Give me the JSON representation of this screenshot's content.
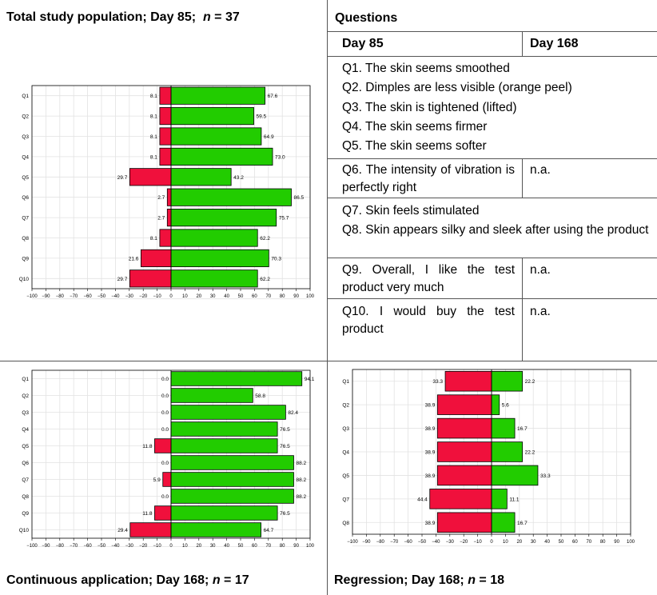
{
  "panels": {
    "top_left_title": "Total study population; Day 85;",
    "top_left_n": "37",
    "bottom_left_title": "Continuous application; Day 168;",
    "bottom_left_n": "17",
    "bottom_right_title": "Regression; Day 168;",
    "bottom_right_n": "18",
    "n_label": "n",
    "equals": "="
  },
  "questions_table": {
    "title": "Questions",
    "col_day85": "Day 85",
    "col_day168": "Day 168",
    "q1": "Q1. The skin seems smoothed",
    "q2": "Q2. Dimples are less visible (orange peel)",
    "q3": "Q3. The skin is tightened (lifted)",
    "q4": "Q4. The skin seems firmer",
    "q5": "Q5. The skin seems softer",
    "q6": "Q6. The intensity of vibration is perfectly right",
    "q6_168": "n.a.",
    "q7": "Q7. Skin feels stimulated",
    "q8": "Q8. Skin appears silky and sleek after using the product",
    "q9": "Q9. Overall, I like the test product very much",
    "q9_168": "n.a.",
    "q10": "Q10. I would buy the test product",
    "q10_168": "n.a."
  },
  "colors": {
    "negative": "#f0103c",
    "positive": "#22cc00",
    "grid": "#e2e2e2"
  },
  "chart_data": [
    {
      "type": "bar",
      "orientation": "horizontal-diverging",
      "title": "Total study population; Day 85; n = 37",
      "categories": [
        "Q1",
        "Q2",
        "Q3",
        "Q4",
        "Q5",
        "Q6",
        "Q7",
        "Q8",
        "Q9",
        "Q10"
      ],
      "negative": [
        8.1,
        8.1,
        8.1,
        8.1,
        29.7,
        2.7,
        2.7,
        8.1,
        21.6,
        29.7
      ],
      "positive": [
        67.6,
        59.5,
        64.9,
        73.0,
        43.2,
        86.5,
        75.7,
        62.2,
        70.3,
        62.2
      ],
      "xlim": [
        -100,
        100
      ],
      "xticks": [
        -100,
        -90,
        -80,
        -70,
        -60,
        -50,
        -40,
        -30,
        -20,
        -10,
        0,
        10,
        20,
        30,
        40,
        50,
        60,
        70,
        80,
        90,
        100
      ],
      "grid": true
    },
    {
      "type": "bar",
      "orientation": "horizontal-diverging",
      "title": "Continuous application; Day 168; n = 17",
      "categories": [
        "Q1",
        "Q2",
        "Q3",
        "Q4",
        "Q5",
        "Q6",
        "Q7",
        "Q8",
        "Q9",
        "Q10"
      ],
      "negative": [
        0.0,
        0.0,
        0.0,
        0.0,
        11.8,
        0.0,
        5.9,
        0.0,
        11.8,
        29.4
      ],
      "positive": [
        94.1,
        58.8,
        82.4,
        76.5,
        76.5,
        88.2,
        88.2,
        88.2,
        76.5,
        64.7
      ],
      "xlim": [
        -100,
        100
      ],
      "xticks": [
        -100,
        -90,
        -80,
        -70,
        -60,
        -50,
        -40,
        -30,
        -20,
        -10,
        0,
        10,
        20,
        30,
        40,
        50,
        60,
        70,
        80,
        90,
        100
      ],
      "grid": true
    },
    {
      "type": "bar",
      "orientation": "horizontal-diverging",
      "title": "Regression; Day 168; n = 18",
      "categories": [
        "Q1",
        "Q2",
        "Q3",
        "Q4",
        "Q5",
        "Q7",
        "Q8"
      ],
      "negative": [
        33.3,
        38.9,
        38.9,
        38.9,
        38.9,
        44.4,
        38.9
      ],
      "positive": [
        22.2,
        5.6,
        16.7,
        22.2,
        33.3,
        11.1,
        16.7
      ],
      "xlim": [
        -100,
        100
      ],
      "xticks": [
        -100,
        -90,
        -80,
        -70,
        -60,
        -50,
        -40,
        -30,
        -20,
        -10,
        0,
        10,
        20,
        30,
        40,
        50,
        60,
        70,
        80,
        90,
        100
      ],
      "grid": true
    }
  ]
}
